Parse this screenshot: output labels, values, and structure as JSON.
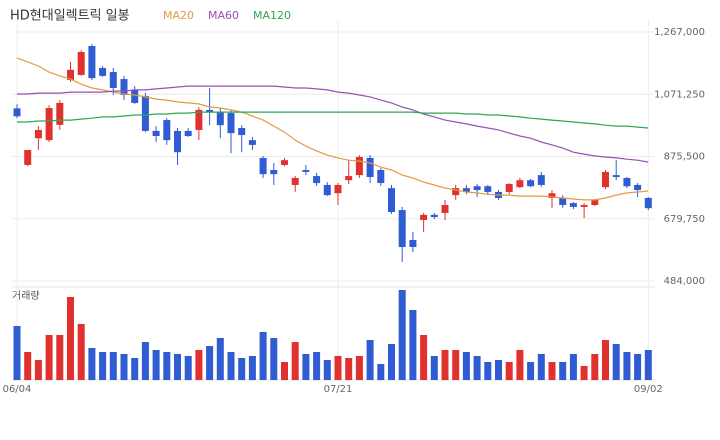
{
  "chart_data": {
    "type": "candlestick",
    "title": "HD현대일렉트릭 일봉",
    "categories": [
      "06/04",
      null,
      null,
      null,
      null,
      null,
      null,
      null,
      null,
      null,
      null,
      null,
      null,
      null,
      null,
      null,
      null,
      null,
      null,
      null,
      null,
      null,
      null,
      null,
      null,
      null,
      null,
      null,
      null,
      null,
      "07/21",
      null,
      null,
      null,
      null,
      null,
      null,
      null,
      null,
      null,
      null,
      null,
      null,
      null,
      null,
      null,
      null,
      null,
      null,
      null,
      null,
      null,
      null,
      null,
      null,
      null,
      null,
      null,
      null,
      "09/02"
    ],
    "open": [
      1027000,
      849000,
      933000,
      927000,
      975000,
      1116000,
      1132000,
      1223000,
      1154000,
      1141000,
      1119000,
      1085000,
      1066000,
      956000,
      990000,
      956000,
      956000,
      959000,
      1022000,
      1015000,
      1012000,
      965000,
      927000,
      871000,
      833000,
      849000,
      786000,
      833000,
      814000,
      786000,
      760000,
      801000,
      817000,
      871000,
      833000,
      776000,
      707000,
      613000,
      676000,
      692000,
      698000,
      754000,
      776000,
      782000,
      782000,
      764000,
      764000,
      779000,
      801000,
      817000,
      745000,
      745000,
      729000,
      717000,
      723000,
      779000,
      817000,
      808000,
      786000,
      745000
    ],
    "high": [
      1040000,
      896000,
      971000,
      1037000,
      1053000,
      1173000,
      1210000,
      1229000,
      1160000,
      1154000,
      1129000,
      1097000,
      1075000,
      971000,
      996000,
      965000,
      965000,
      1031000,
      1091000,
      1028000,
      1022000,
      974000,
      937000,
      877000,
      855000,
      871000,
      814000,
      849000,
      824000,
      795000,
      792000,
      864000,
      880000,
      880000,
      839000,
      786000,
      717000,
      638000,
      698000,
      698000,
      739000,
      786000,
      786000,
      789000,
      786000,
      770000,
      792000,
      808000,
      805000,
      827000,
      770000,
      754000,
      732000,
      729000,
      742000,
      833000,
      864000,
      811000,
      792000,
      748000
    ],
    "low": [
      996000,
      845000,
      896000,
      921000,
      959000,
      1110000,
      1129000,
      1116000,
      1126000,
      1069000,
      1053000,
      1041000,
      952000,
      921000,
      912000,
      849000,
      937000,
      927000,
      974000,
      933000,
      886000,
      889000,
      896000,
      808000,
      786000,
      845000,
      764000,
      817000,
      783000,
      751000,
      723000,
      789000,
      808000,
      792000,
      783000,
      695000,
      544000,
      575000,
      638000,
      679000,
      676000,
      739000,
      757000,
      748000,
      754000,
      739000,
      757000,
      776000,
      779000,
      779000,
      714000,
      714000,
      710000,
      682000,
      720000,
      773000,
      801000,
      776000,
      748000,
      707000
    ],
    "close": [
      1002000,
      896000,
      959000,
      1028000,
      1044000,
      1148000,
      1204000,
      1122000,
      1129000,
      1091000,
      1069000,
      1044000,
      956000,
      940000,
      927000,
      889000,
      940000,
      1022000,
      1015000,
      974000,
      949000,
      943000,
      912000,
      820000,
      820000,
      864000,
      808000,
      827000,
      792000,
      754000,
      786000,
      814000,
      874000,
      811000,
      792000,
      701000,
      591000,
      591000,
      692000,
      685000,
      723000,
      776000,
      764000,
      770000,
      764000,
      745000,
      789000,
      801000,
      782000,
      786000,
      760000,
      723000,
      717000,
      723000,
      739000,
      827000,
      811000,
      782000,
      770000,
      713000
    ],
    "volume": [
      54,
      28,
      20,
      45,
      45,
      83,
      56,
      32,
      28,
      28,
      26,
      22,
      38,
      30,
      28,
      26,
      24,
      30,
      34,
      42,
      28,
      22,
      24,
      48,
      42,
      18,
      38,
      26,
      28,
      20,
      24,
      22,
      24,
      40,
      16,
      36,
      90,
      70,
      45,
      24,
      30,
      30,
      28,
      24,
      18,
      20,
      18,
      30,
      18,
      26,
      18,
      18,
      26,
      14,
      26,
      40,
      36,
      28,
      26,
      30
    ],
    "volume_label": "거래량",
    "up_color": "#e0312f",
    "down_color": "#2f5bd3",
    "series": [
      {
        "name": "MA20",
        "color": "#e39a45",
        "values": [
          1185000,
          1173000,
          1160000,
          1141000,
          1129000,
          1119000,
          1103000,
          1091000,
          1085000,
          1078000,
          1072000,
          1069000,
          1063000,
          1056000,
          1053000,
          1047000,
          1044000,
          1041000,
          1031000,
          1028000,
          1022000,
          1015000,
          1003000,
          990000,
          971000,
          952000,
          927000,
          908000,
          893000,
          880000,
          871000,
          864000,
          861000,
          855000,
          842000,
          833000,
          817000,
          808000,
          795000,
          786000,
          776000,
          770000,
          764000,
          761000,
          757000,
          754000,
          754000,
          751000,
          751000,
          751000,
          748000,
          745000,
          742000,
          739000,
          739000,
          745000,
          754000,
          761000,
          764000,
          767000
        ]
      },
      {
        "name": "MA60",
        "color": "#9a4fb5",
        "values": [
          1072000,
          1072000,
          1075000,
          1075000,
          1075000,
          1078000,
          1078000,
          1078000,
          1078000,
          1081000,
          1081000,
          1085000,
          1085000,
          1088000,
          1091000,
          1094000,
          1097000,
          1097000,
          1097000,
          1097000,
          1097000,
          1097000,
          1097000,
          1097000,
          1097000,
          1094000,
          1091000,
          1091000,
          1088000,
          1085000,
          1078000,
          1075000,
          1069000,
          1063000,
          1053000,
          1044000,
          1031000,
          1022000,
          1009000,
          1000000,
          990000,
          984000,
          978000,
          971000,
          965000,
          959000,
          949000,
          940000,
          933000,
          921000,
          912000,
          902000,
          889000,
          883000,
          877000,
          874000,
          871000,
          867000,
          864000,
          858000
        ]
      },
      {
        "name": "MA120",
        "color": "#2fa650",
        "values": [
          984000,
          984000,
          987000,
          987000,
          990000,
          990000,
          993000,
          996000,
          1000000,
          1000000,
          1003000,
          1006000,
          1006000,
          1009000,
          1009000,
          1012000,
          1012000,
          1015000,
          1015000,
          1015000,
          1015000,
          1015000,
          1015000,
          1015000,
          1015000,
          1015000,
          1015000,
          1015000,
          1015000,
          1015000,
          1015000,
          1015000,
          1015000,
          1015000,
          1015000,
          1015000,
          1015000,
          1015000,
          1012000,
          1012000,
          1012000,
          1012000,
          1009000,
          1009000,
          1006000,
          1006000,
          1003000,
          1000000,
          996000,
          993000,
          990000,
          987000,
          984000,
          981000,
          978000,
          974000,
          971000,
          971000,
          968000,
          965000
        ]
      }
    ],
    "ylim": [
      484000,
      1267000
    ],
    "yticks": [
      {
        "value": 484000,
        "label": "484,000"
      },
      {
        "value": 679750,
        "label": "679,750"
      },
      {
        "value": 875500,
        "label": "875,500"
      },
      {
        "value": 1071250,
        "label": "1,071,250"
      },
      {
        "value": 1267000,
        "label": "1,267,000"
      }
    ],
    "grid": true
  }
}
